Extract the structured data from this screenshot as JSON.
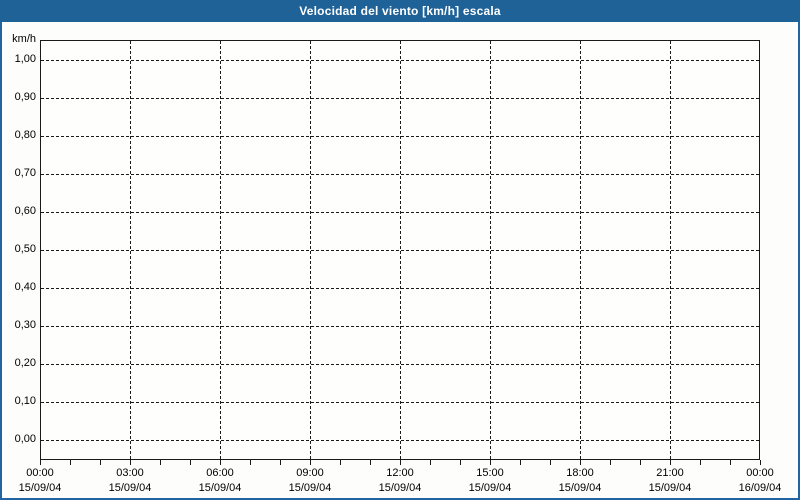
{
  "window": {
    "title": "Velocidad del viento [km/h] escala"
  },
  "colors": {
    "titlebar_bg": "#1e6298",
    "window_border": "#2264a2",
    "title_text": "#ffffff",
    "label_text": "#000000",
    "grid": "#1a1a1a",
    "panel_bg": "#fdfdfb"
  },
  "chart_data": {
    "type": "line",
    "title": "Velocidad del viento [km/h] escala",
    "unit_label": "km/h",
    "ylabel": "km/h",
    "ylim": [
      0.0,
      1.0
    ],
    "y_tick_step": 0.1,
    "y_tick_labels": [
      "1,00",
      "0,90",
      "0,80",
      "0,70",
      "0,60",
      "0,50",
      "0,40",
      "0,30",
      "0,20",
      "0,10",
      "0,00"
    ],
    "x_tick_labels": [
      {
        "time": "00:00",
        "date": "15/09/04"
      },
      {
        "time": "03:00",
        "date": "15/09/04"
      },
      {
        "time": "06:00",
        "date": "15/09/04"
      },
      {
        "time": "09:00",
        "date": "15/09/04"
      },
      {
        "time": "12:00",
        "date": "15/09/04"
      },
      {
        "time": "15:00",
        "date": "15/09/04"
      },
      {
        "time": "18:00",
        "date": "15/09/04"
      },
      {
        "time": "21:00",
        "date": "15/09/04"
      },
      {
        "time": "00:00",
        "date": "16/09/04"
      }
    ],
    "x_minor_ticks_per_major": 3,
    "grid": "dashed",
    "legend": "none",
    "series": []
  }
}
